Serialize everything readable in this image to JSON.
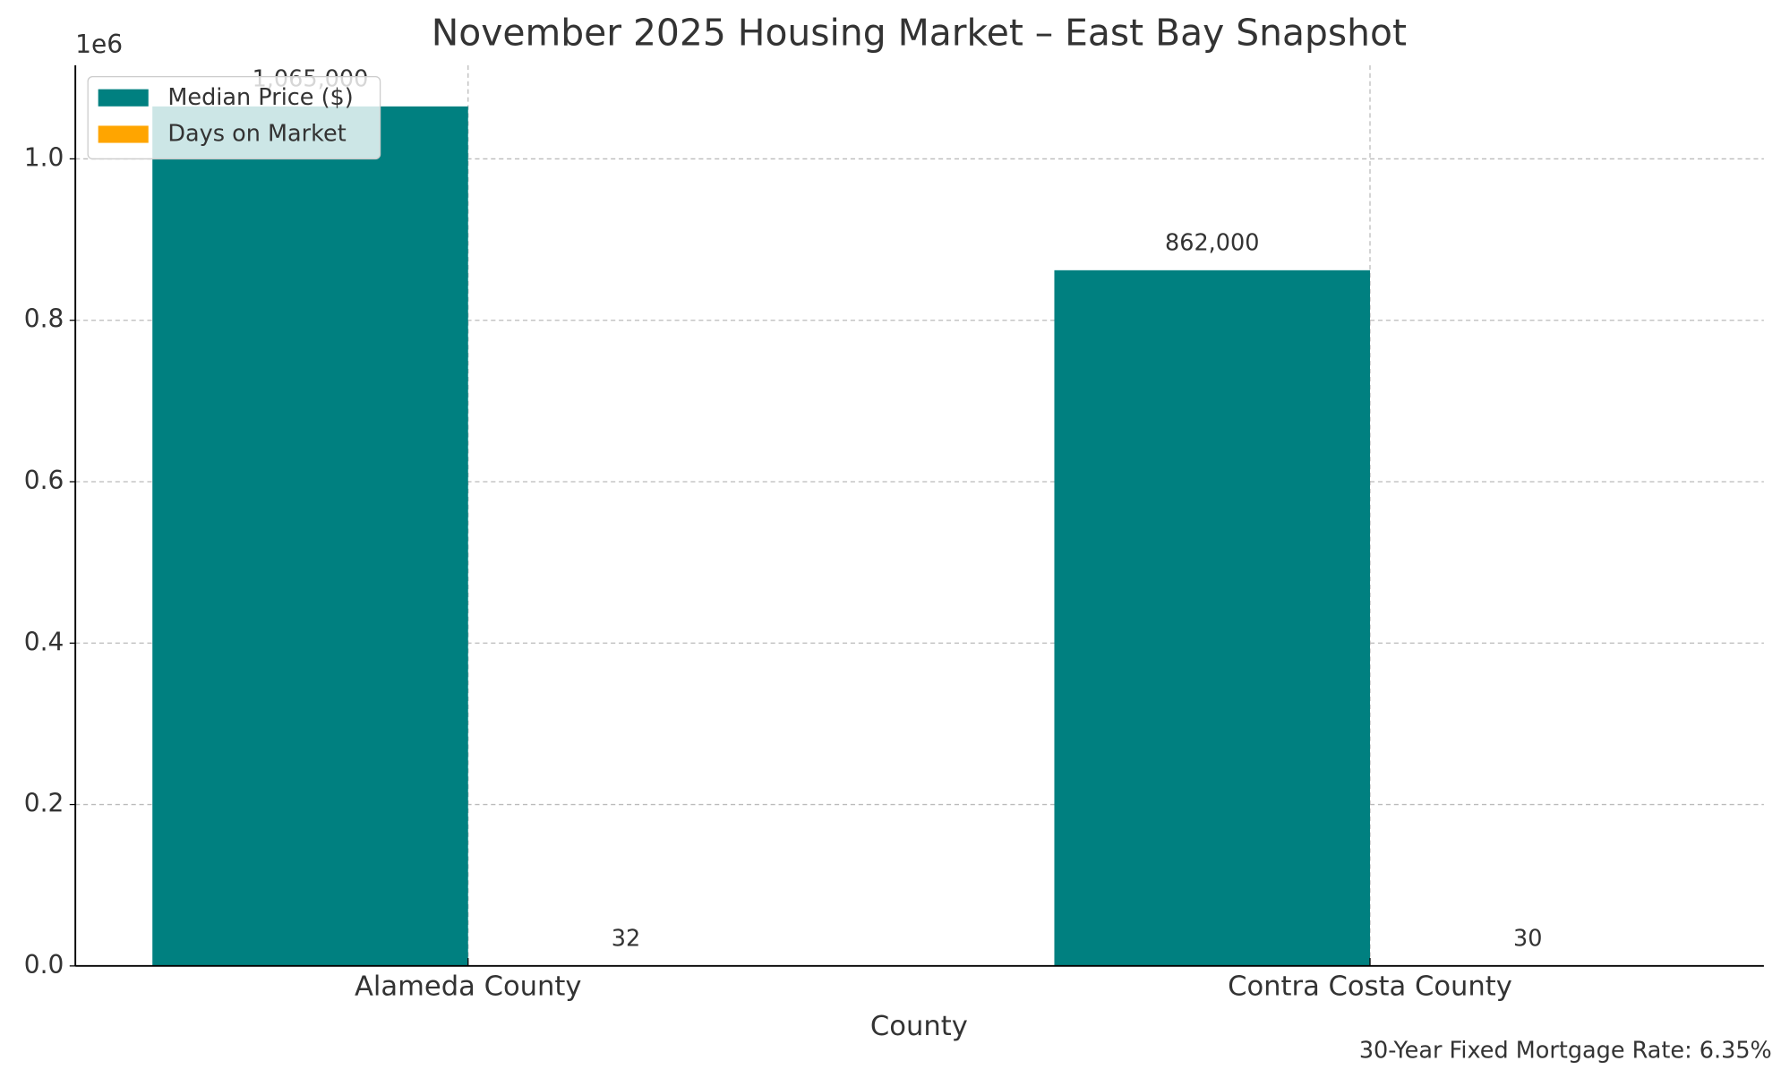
{
  "chart_data": {
    "type": "bar",
    "title": "November 2025 Housing Market – East Bay Snapshot",
    "x_label": "County",
    "y_offset_label": "1e6",
    "annotation": "30-Year Fixed Mortgage Rate: 6.35%",
    "categories": [
      "Alameda County",
      "Contra Costa County"
    ],
    "series": [
      {
        "name": "Median Price ($)",
        "color": "#008080",
        "values": [
          1065000,
          862000
        ],
        "value_labels": [
          "1,065,000",
          "862,000"
        ]
      },
      {
        "name": "Days on Market",
        "color": "#ffa500",
        "values": [
          32,
          30
        ]
      }
    ],
    "ylim": [
      0,
      1116000
    ],
    "yticks": [
      {
        "value": 0,
        "label": "0.0"
      },
      {
        "value": 200000,
        "label": "0.2"
      },
      {
        "value": 400000,
        "label": "0.4"
      },
      {
        "value": 600000,
        "label": "0.6"
      },
      {
        "value": 800000,
        "label": "0.8"
      },
      {
        "value": 1000000,
        "label": "1.0"
      }
    ],
    "grid": true,
    "legend": "upper left"
  }
}
